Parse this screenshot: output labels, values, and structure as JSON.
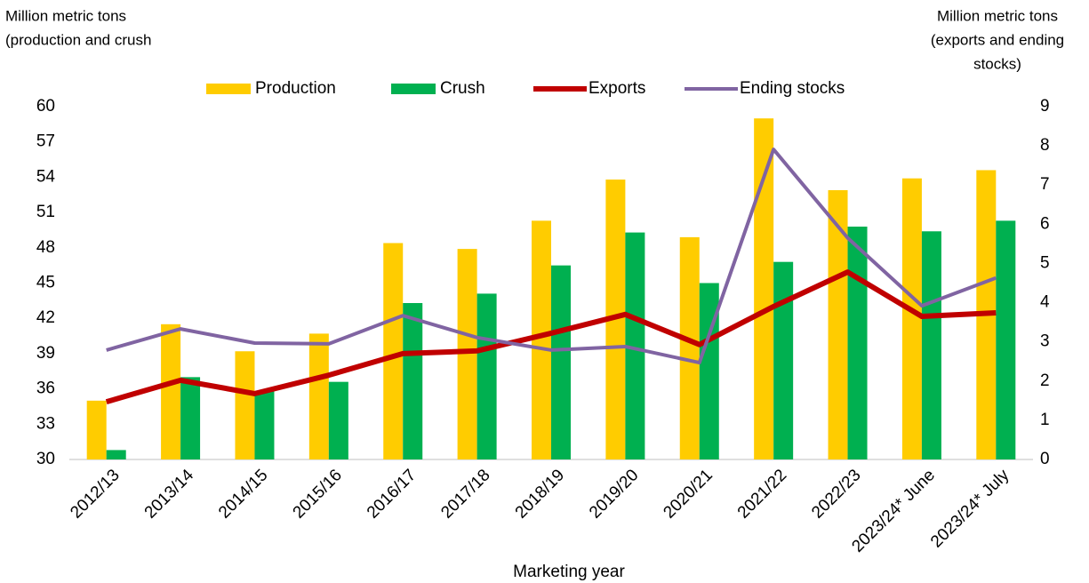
{
  "chart_data": {
    "type": "bar_line",
    "y_label": [
      "Million metric tons",
      "(production and crush"
    ],
    "y2_label": [
      "Million metric tons",
      "(exports and ending",
      "stocks)"
    ],
    "x_label": "Marketing year",
    "categories": [
      "2012/13",
      "2013/14",
      "2014/15",
      "2015/16",
      "2016/17",
      "2017/18",
      "2018/19",
      "2019/20",
      "2020/21",
      "2021/22",
      "2022/23",
      "2023/24* June",
      "2023/24* July"
    ],
    "series": [
      {
        "name": "Production",
        "kind": "bar",
        "color": "#ffcc00",
        "values": [
          35.0,
          41.5,
          39.2,
          40.7,
          48.4,
          47.9,
          50.3,
          53.8,
          48.9,
          59.0,
          52.9,
          53.9,
          54.6
        ]
      },
      {
        "name": "Crush",
        "kind": "bar",
        "color": "#00b050",
        "values": [
          30.8,
          37.0,
          35.8,
          36.6,
          43.3,
          44.1,
          46.5,
          49.3,
          45.0,
          46.8,
          49.8,
          49.4,
          50.3
        ]
      },
      {
        "name": "Exports",
        "kind": "line",
        "axis": "y2",
        "color": "#c00000",
        "values": [
          1.47,
          2.02,
          1.68,
          2.15,
          2.7,
          2.77,
          3.22,
          3.7,
          2.93,
          3.9,
          4.78,
          3.65,
          3.74
        ]
      },
      {
        "name": "Ending stocks",
        "kind": "line",
        "axis": "y2",
        "color": "#8064a2",
        "values": [
          2.79,
          3.33,
          2.97,
          2.95,
          3.67,
          3.11,
          2.79,
          2.88,
          2.47,
          7.91,
          5.65,
          3.92,
          4.63
        ]
      }
    ],
    "ylim": [
      30,
      60
    ],
    "yticks": [
      30,
      33,
      36,
      39,
      42,
      45,
      48,
      51,
      54,
      57,
      60
    ],
    "y2lim": [
      0,
      9
    ],
    "y2ticks": [
      0,
      1,
      2,
      3,
      4,
      5,
      6,
      7,
      8,
      9
    ],
    "legend": "top"
  }
}
